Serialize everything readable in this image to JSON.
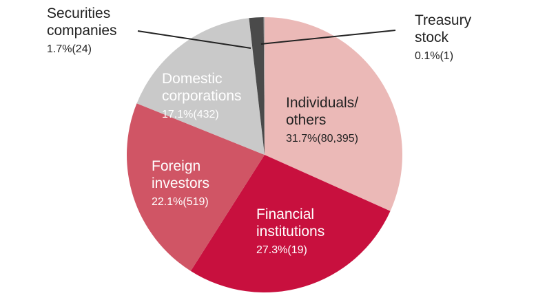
{
  "chart_data": {
    "type": "pie",
    "categories": [
      "Individuals/ others",
      "Financial institutions",
      "Foreign investors",
      "Domestic corporations",
      "Securities companies",
      "Treasury stock"
    ],
    "values": [
      31.7,
      27.3,
      22.1,
      17.1,
      1.7,
      0.1
    ],
    "value_labels": [
      "31.7%(80,395)",
      "27.3%(19)",
      "22.1%(519)",
      "17.1%(432)",
      "1.7%(24)",
      "0.1%(1)"
    ],
    "colors": [
      "#ebb9b7",
      "#c8103e",
      "#d05565",
      "#c9c9c9",
      "#4a4a4a",
      "#a8a8a8"
    ]
  }
}
